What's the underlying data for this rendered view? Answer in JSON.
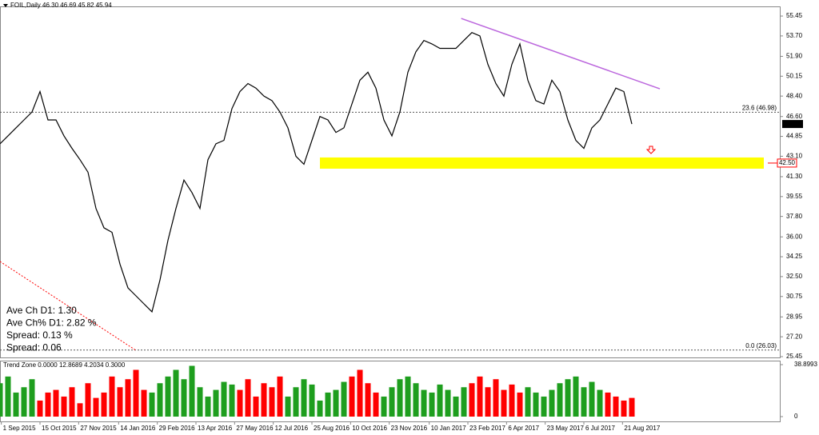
{
  "chart_data": [
    {
      "type": "line",
      "title": "FOIL,Daily 46.30 46.69 45.82 45.94",
      "x": [
        0,
        6,
        12,
        18,
        24,
        30,
        36,
        42,
        48,
        54,
        60,
        66,
        72,
        78,
        84,
        90,
        96,
        102,
        108,
        114,
        120,
        126,
        132,
        138,
        144,
        150,
        156,
        162,
        168,
        174,
        180,
        186,
        192,
        198,
        204,
        210,
        216,
        222,
        228,
        234,
        240,
        246,
        252,
        258,
        264,
        270,
        276,
        282,
        288,
        294,
        300,
        306,
        312,
        318,
        324,
        330,
        336,
        342,
        348,
        354,
        360,
        366,
        372,
        378,
        384,
        390,
        396,
        402,
        408,
        414,
        420,
        426,
        432,
        438,
        444,
        450,
        456,
        462,
        468,
        474
      ],
      "series": [
        {
          "color": "#000000",
          "values": [
            44.2,
            44.9,
            45.6,
            46.3,
            47,
            48.8,
            46.3,
            46.3,
            44.9,
            43.8,
            42.8,
            41.7,
            38.5,
            36.8,
            36.4,
            33.6,
            31.5,
            30.8,
            30.1,
            29.4,
            32.2,
            35.7,
            38.5,
            41,
            39.9,
            38.5,
            42.8,
            44.2,
            44.5,
            47.3,
            48.8,
            49.5,
            49.1,
            48.4,
            48,
            47,
            45.6,
            43.1,
            42.4,
            44.5,
            46.6,
            46.3,
            45.2,
            45.6,
            47.7,
            49.8,
            50.5,
            49.1,
            46.3,
            44.9,
            47,
            50.5,
            52.3,
            53.3,
            53,
            52.6,
            52.6,
            52.6,
            53.3,
            54,
            53.7,
            51.2,
            49.5,
            48.4,
            51.2,
            53,
            49.8,
            48,
            47.7,
            49.8,
            48.8,
            46.3,
            44.5,
            43.8,
            45.6,
            46.3,
            47.7,
            49.1,
            48.8,
            45.94
          ]
        }
      ],
      "xlim": [
        0,
        585
      ],
      "ylim": [
        25.38,
        56.3
      ],
      "yticks": [
        55.45,
        {
          "value": 53.7,
          "label": "53.70"
        },
        {
          "value": 51.9,
          "label": "51.90"
        },
        50.15,
        {
          "value": 48.4,
          "label": "48.40"
        },
        {
          "value": 46.6,
          "label": "46.60"
        },
        44.85,
        {
          "value": 43.1,
          "label": "43.10"
        },
        {
          "value": 41.3,
          "label": "41.30"
        },
        39.55,
        {
          "value": 37.8,
          "label": "37.80"
        },
        {
          "value": 36,
          "label": "36.00"
        },
        34.25,
        {
          "value": 32.5,
          "label": "32.50"
        },
        30.75,
        28.95,
        {
          "value": 27.2,
          "label": "27.20"
        },
        25.45
      ],
      "last_price": {
        "value": 45.94,
        "label": "45.94"
      },
      "support": {
        "value": 42.5,
        "label": "42.50",
        "zone_x": [
          240,
          573
        ],
        "color": "#ffff00"
      },
      "fib_levels": [
        {
          "value": 46.98,
          "label": "23.6  (46.98)"
        },
        {
          "value": 26.03,
          "label": "0.0  (26.03)"
        }
      ],
      "lines": [
        {
          "x": [
            346,
            495
          ],
          "values": [
            55.24,
            49.04
          ],
          "color": "#bb66dd",
          "dashed": false
        },
        {
          "x": [
            0,
            102
          ],
          "values": [
            33.83,
            26.0
          ],
          "color": "#ff0000",
          "dashed": true
        }
      ],
      "info": [
        {
          "text": "Ave Ch D1: 1.30",
          "color": "#a0522d"
        },
        {
          "text": "Ave Ch% D1: 2.82 %",
          "color": "#2e8b57"
        },
        {
          "text": "Spread: 0.13 %",
          "color": "#7b68ee"
        },
        {
          "text": "Spread: 0.06",
          "color": "#ff0000"
        }
      ]
    },
    {
      "type": "bar",
      "title": "Trend Zone 0.0000 12.8689 4.2034 0.3000",
      "x": [
        0,
        6,
        12,
        18,
        24,
        30,
        36,
        42,
        48,
        54,
        60,
        66,
        72,
        78,
        84,
        90,
        96,
        102,
        108,
        114,
        120,
        126,
        132,
        138,
        144,
        150,
        156,
        162,
        168,
        174,
        180,
        186,
        192,
        198,
        204,
        210,
        216,
        222,
        228,
        234,
        240,
        246,
        252,
        258,
        264,
        270,
        276,
        282,
        288,
        294,
        300,
        306,
        312,
        318,
        324,
        330,
        336,
        342,
        348,
        354,
        360,
        366,
        372,
        378,
        384,
        390,
        396,
        402,
        408,
        414,
        420,
        426,
        432,
        438,
        444,
        450,
        456,
        462,
        468,
        474
      ],
      "values": [
        25,
        30,
        18,
        22,
        28,
        12,
        18,
        20,
        15,
        22,
        10,
        25,
        14,
        18,
        30,
        22,
        28,
        35,
        20,
        18,
        25,
        30,
        35,
        28,
        38,
        22,
        15,
        20,
        26,
        24,
        20,
        28,
        15,
        25,
        22,
        30,
        15,
        22,
        28,
        24,
        12,
        18,
        20,
        26,
        30,
        35,
        25,
        18,
        15,
        22,
        28,
        30,
        25,
        20,
        18,
        24,
        20,
        15,
        22,
        25,
        30,
        22,
        28,
        20,
        24,
        18,
        22,
        18,
        15,
        20,
        25,
        28,
        30,
        22,
        26,
        20,
        18,
        15,
        12,
        14
      ],
      "bar_colors": [
        "#1e9e1e",
        "#1e9e1e",
        "#1e9e1e",
        "#1e9e1e",
        "#1e9e1e",
        "#ff0000",
        "#ff0000",
        "#ff0000",
        "#ff0000",
        "#ff0000",
        "#ff0000",
        "#ff0000",
        "#ff0000",
        "#ff0000",
        "#ff0000",
        "#ff0000",
        "#ff0000",
        "#ff0000",
        "#ff0000",
        "#1e9e1e",
        "#1e9e1e",
        "#1e9e1e",
        "#1e9e1e",
        "#1e9e1e",
        "#1e9e1e",
        "#1e9e1e",
        "#1e9e1e",
        "#1e9e1e",
        "#1e9e1e",
        "#1e9e1e",
        "#ff0000",
        "#ff0000",
        "#ff0000",
        "#ff0000",
        "#ff0000",
        "#ff0000",
        "#1e9e1e",
        "#1e9e1e",
        "#1e9e1e",
        "#1e9e1e",
        "#1e9e1e",
        "#1e9e1e",
        "#1e9e1e",
        "#1e9e1e",
        "#ff0000",
        "#ff0000",
        "#ff0000",
        "#ff0000",
        "#1e9e1e",
        "#1e9e1e",
        "#1e9e1e",
        "#1e9e1e",
        "#1e9e1e",
        "#1e9e1e",
        "#1e9e1e",
        "#1e9e1e",
        "#1e9e1e",
        "#1e9e1e",
        "#1e9e1e",
        "#ff0000",
        "#ff0000",
        "#ff0000",
        "#ff0000",
        "#ff0000",
        "#ff0000",
        "#ff0000",
        "#1e9e1e",
        "#1e9e1e",
        "#1e9e1e",
        "#1e9e1e",
        "#1e9e1e",
        "#1e9e1e",
        "#1e9e1e",
        "#1e9e1e",
        "#1e9e1e",
        "#1e9e1e",
        "#ff0000",
        "#ff0000",
        "#ff0000",
        "#ff0000"
      ],
      "xlim": [
        0,
        585
      ],
      "ylim": [
        -3.59,
        41.89
      ],
      "yticks": [
        38.8993,
        0
      ],
      "xticks": [
        {
          "value": 1,
          "label": "1 Sep 2015"
        },
        {
          "value": 30,
          "label": "15 Oct 2015"
        },
        {
          "value": 59,
          "label": "27 Nov 2015"
        },
        {
          "value": 89,
          "label": "14 Jan 2016"
        },
        {
          "value": 118,
          "label": "29 Feb 2016"
        },
        {
          "value": 147,
          "label": "13 Apr 2016"
        },
        {
          "value": 176,
          "label": "27 May 2016"
        },
        {
          "value": 205,
          "label": "12 Jul 2016"
        },
        {
          "value": 234,
          "label": "25 Aug 2016"
        },
        {
          "value": 263,
          "label": "10 Oct 2016"
        },
        {
          "value": 292,
          "label": "23 Nov 2016"
        },
        {
          "value": 322,
          "label": "10 Jan 2017"
        },
        {
          "value": 351,
          "label": "23 Feb 2017"
        },
        {
          "value": 380,
          "label": "6 Apr 2017"
        },
        {
          "value": 409,
          "label": "23 May 2017"
        },
        {
          "value": 438,
          "label": "6 Jul 2017"
        },
        {
          "value": 467,
          "label": "21 Aug 2017"
        }
      ]
    }
  ]
}
